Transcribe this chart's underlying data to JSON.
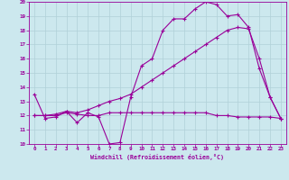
{
  "xlabel": "Windchill (Refroidissement éolien,°C)",
  "xlim": [
    -0.5,
    23.5
  ],
  "ylim": [
    10,
    20
  ],
  "xticks": [
    0,
    1,
    2,
    3,
    4,
    5,
    6,
    7,
    8,
    9,
    10,
    11,
    12,
    13,
    14,
    15,
    16,
    17,
    18,
    19,
    20,
    21,
    22,
    23
  ],
  "yticks": [
    10,
    11,
    12,
    13,
    14,
    15,
    16,
    17,
    18,
    19,
    20
  ],
  "bg_color": "#cce8ee",
  "grid_color": "#b0d0d8",
  "line_color": "#990099",
  "line1_x": [
    0,
    1,
    2,
    3,
    4,
    5,
    6,
    7,
    8,
    9,
    10,
    11,
    12,
    13,
    14,
    15,
    16,
    17,
    18,
    19,
    20,
    21,
    22,
    23
  ],
  "line1_y": [
    13.5,
    11.8,
    11.9,
    12.3,
    11.5,
    12.2,
    11.9,
    10.0,
    10.1,
    13.3,
    15.5,
    16.0,
    18.0,
    18.8,
    18.8,
    19.5,
    20.0,
    19.8,
    19.0,
    19.1,
    18.2,
    15.3,
    13.3,
    11.8
  ],
  "line2_x": [
    0,
    1,
    2,
    3,
    4,
    5,
    6,
    7,
    8,
    9,
    10,
    11,
    12,
    13,
    14,
    15,
    16,
    17,
    18,
    19,
    20,
    21,
    22,
    23
  ],
  "line2_y": [
    12.0,
    12.0,
    12.1,
    12.3,
    12.2,
    12.4,
    12.7,
    13.0,
    13.2,
    13.5,
    14.0,
    14.5,
    15.0,
    15.5,
    16.0,
    16.5,
    17.0,
    17.5,
    18.0,
    18.2,
    18.1,
    16.0,
    13.3,
    11.8
  ],
  "line3_x": [
    0,
    1,
    2,
    3,
    4,
    5,
    6,
    7,
    8,
    9,
    10,
    11,
    12,
    13,
    14,
    15,
    16,
    17,
    18,
    19,
    20,
    21,
    22,
    23
  ],
  "line3_y": [
    12.0,
    12.0,
    12.0,
    12.2,
    12.1,
    12.0,
    12.0,
    12.2,
    12.2,
    12.2,
    12.2,
    12.2,
    12.2,
    12.2,
    12.2,
    12.2,
    12.2,
    12.0,
    12.0,
    11.9,
    11.9,
    11.9,
    11.9,
    11.8
  ]
}
